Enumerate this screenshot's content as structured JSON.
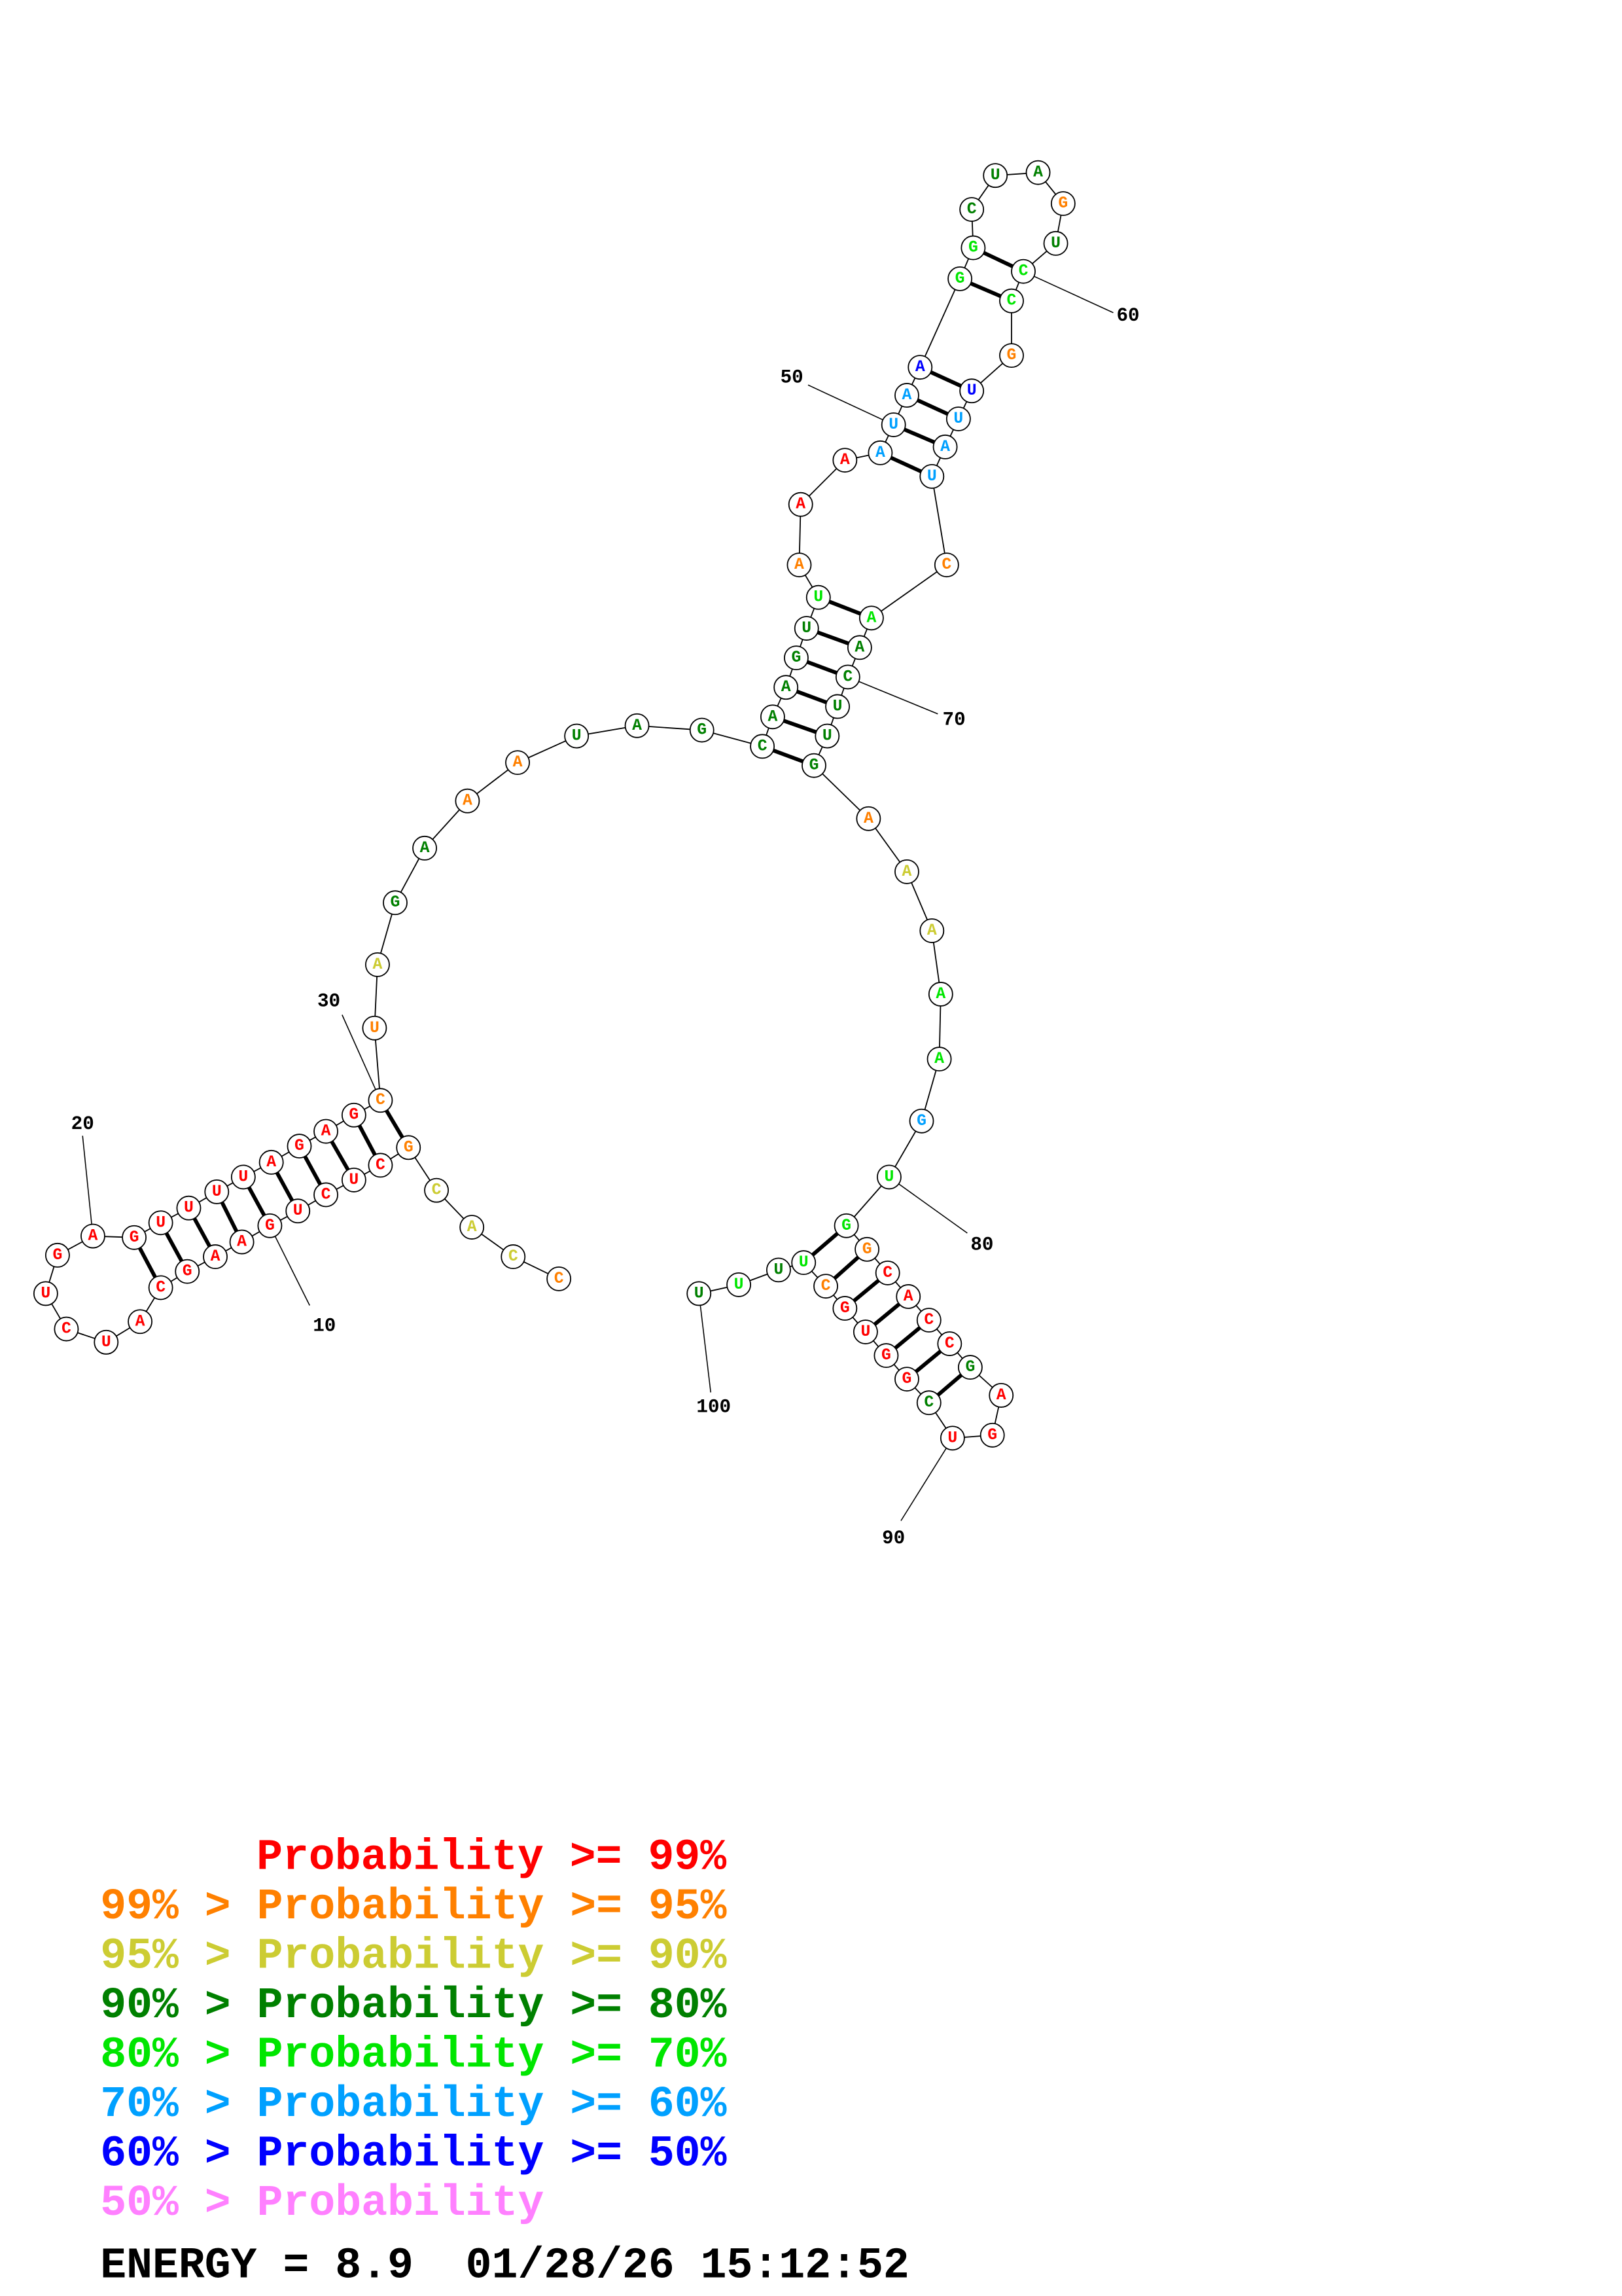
{
  "nucleotides": [
    {
      "base": "C",
      "color": "#ff8000"
    },
    {
      "base": "C",
      "color": "#cccc33"
    },
    {
      "base": "A",
      "color": "#cccc33"
    },
    {
      "base": "C",
      "color": "#cccc33"
    },
    {
      "base": "G",
      "color": "#ff8000"
    },
    {
      "base": "C",
      "color": "#ff0000"
    },
    {
      "base": "U",
      "color": "#ff0000"
    },
    {
      "base": "C",
      "color": "#ff0000"
    },
    {
      "base": "U",
      "color": "#ff0000"
    },
    {
      "base": "G",
      "color": "#ff0000"
    },
    {
      "base": "A",
      "color": "#ff0000"
    },
    {
      "base": "A",
      "color": "#ff0000"
    },
    {
      "base": "G",
      "color": "#ff0000"
    },
    {
      "base": "C",
      "color": "#ff0000"
    },
    {
      "base": "A",
      "color": "#ff0000"
    },
    {
      "base": "U",
      "color": "#ff0000"
    },
    {
      "base": "C",
      "color": "#ff0000"
    },
    {
      "base": "U",
      "color": "#ff0000"
    },
    {
      "base": "G",
      "color": "#ff0000"
    },
    {
      "base": "A",
      "color": "#ff0000"
    },
    {
      "base": "G",
      "color": "#ff0000"
    },
    {
      "base": "U",
      "color": "#ff0000"
    },
    {
      "base": "U",
      "color": "#ff0000"
    },
    {
      "base": "U",
      "color": "#ff0000"
    },
    {
      "base": "U",
      "color": "#ff0000"
    },
    {
      "base": "A",
      "color": "#ff0000"
    },
    {
      "base": "G",
      "color": "#ff0000"
    },
    {
      "base": "A",
      "color": "#ff0000"
    },
    {
      "base": "G",
      "color": "#ff0000"
    },
    {
      "base": "C",
      "color": "#ff8000"
    },
    {
      "base": "U",
      "color": "#ff8000"
    },
    {
      "base": "A",
      "color": "#cccc33"
    },
    {
      "base": "G",
      "color": "#008000"
    },
    {
      "base": "A",
      "color": "#008000"
    },
    {
      "base": "A",
      "color": "#ff8000"
    },
    {
      "base": "A",
      "color": "#ff8000"
    },
    {
      "base": "U",
      "color": "#008000"
    },
    {
      "base": "A",
      "color": "#008000"
    },
    {
      "base": "G",
      "color": "#008000"
    },
    {
      "base": "C",
      "color": "#008000"
    },
    {
      "base": "A",
      "color": "#008000"
    },
    {
      "base": "A",
      "color": "#008000"
    },
    {
      "base": "G",
      "color": "#008000"
    },
    {
      "base": "U",
      "color": "#008000"
    },
    {
      "base": "U",
      "color": "#00e600"
    },
    {
      "base": "A",
      "color": "#ff8000"
    },
    {
      "base": "A",
      "color": "#ff0000"
    },
    {
      "base": "A",
      "color": "#ff0000"
    },
    {
      "base": "A",
      "color": "#00a0ff"
    },
    {
      "base": "U",
      "color": "#00a0ff"
    },
    {
      "base": "A",
      "color": "#00a0ff"
    },
    {
      "base": "A",
      "color": "#0000ff"
    },
    {
      "base": "G",
      "color": "#00e600"
    },
    {
      "base": "G",
      "color": "#00e600"
    },
    {
      "base": "C",
      "color": "#008000"
    },
    {
      "base": "U",
      "color": "#008000"
    },
    {
      "base": "A",
      "color": "#008000"
    },
    {
      "base": "G",
      "color": "#ff8000"
    },
    {
      "base": "U",
      "color": "#008000"
    },
    {
      "base": "C",
      "color": "#00e600"
    },
    {
      "base": "C",
      "color": "#00e600"
    },
    {
      "base": "G",
      "color": "#ff8000"
    },
    {
      "base": "U",
      "color": "#0000ff"
    },
    {
      "base": "U",
      "color": "#00a0ff"
    },
    {
      "base": "A",
      "color": "#00a0ff"
    },
    {
      "base": "U",
      "color": "#00a0ff"
    },
    {
      "base": "C",
      "color": "#ff8000"
    },
    {
      "base": "A",
      "color": "#00e600"
    },
    {
      "base": "A",
      "color": "#008000"
    },
    {
      "base": "C",
      "color": "#008000"
    },
    {
      "base": "U",
      "color": "#008000"
    },
    {
      "base": "U",
      "color": "#008000"
    },
    {
      "base": "G",
      "color": "#008000"
    },
    {
      "base": "A",
      "color": "#ff8000"
    },
    {
      "base": "A",
      "color": "#cccc33"
    },
    {
      "base": "A",
      "color": "#cccc33"
    },
    {
      "base": "A",
      "color": "#00e600"
    },
    {
      "base": "A",
      "color": "#00e600"
    },
    {
      "base": "G",
      "color": "#00a0ff"
    },
    {
      "base": "U",
      "color": "#00e600"
    },
    {
      "base": "G",
      "color": "#00e600"
    },
    {
      "base": "G",
      "color": "#ff8000"
    },
    {
      "base": "C",
      "color": "#ff0000"
    },
    {
      "base": "A",
      "color": "#ff0000"
    },
    {
      "base": "C",
      "color": "#ff0000"
    },
    {
      "base": "C",
      "color": "#ff0000"
    },
    {
      "base": "G",
      "color": "#008000"
    },
    {
      "base": "A",
      "color": "#ff0000"
    },
    {
      "base": "G",
      "color": "#ff0000"
    },
    {
      "base": "U",
      "color": "#ff0000"
    },
    {
      "base": "C",
      "color": "#008000"
    },
    {
      "base": "G",
      "color": "#ff0000"
    },
    {
      "base": "G",
      "color": "#ff0000"
    },
    {
      "base": "U",
      "color": "#ff0000"
    },
    {
      "base": "G",
      "color": "#ff0000"
    },
    {
      "base": "C",
      "color": "#ff8000"
    },
    {
      "base": "U",
      "color": "#00e600"
    },
    {
      "base": "U",
      "color": "#008000"
    },
    {
      "base": "U",
      "color": "#00e600"
    },
    {
      "base": "U",
      "color": "#008000"
    }
  ],
  "position_labels": [
    10,
    20,
    30,
    50,
    60,
    70,
    80,
    90,
    100
  ],
  "legend": [
    {
      "text": "Probability >= 99%",
      "color": "#ff0000"
    },
    {
      "text": "99% > Probability >= 95%",
      "color": "#ff8000"
    },
    {
      "text": "95% > Probability >= 90%",
      "color": "#cccc33"
    },
    {
      "text": "90% > Probability >= 80%",
      "color": "#008000"
    },
    {
      "text": "80% > Probability >= 70%",
      "color": "#00e600"
    },
    {
      "text": "70% > Probability >= 60%",
      "color": "#00a0ff"
    },
    {
      "text": "60% > Probability >= 50%",
      "color": "#0000ff"
    },
    {
      "text": "50% > Probability",
      "color": "#ff80ff"
    }
  ],
  "energy": "ENERGY = 8.9  01/28/26 15:12:52"
}
